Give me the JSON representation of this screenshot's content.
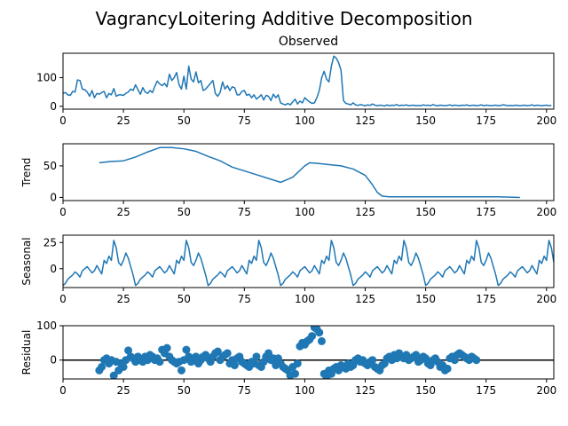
{
  "title": "VagrancyLoitering Additive Decomposition",
  "colors": {
    "series": "#1f77b4",
    "frame": "#000000",
    "zero_line": "#000000"
  },
  "chart_data": [
    {
      "type": "line",
      "name": "observed",
      "title": "Observed",
      "ylabel": "",
      "xlim": [
        0,
        203
      ],
      "ylim": [
        -10,
        185
      ],
      "xticks": [
        0,
        25,
        50,
        75,
        100,
        125,
        150,
        175,
        200
      ],
      "yticks": [
        0,
        100
      ],
      "x_start": 0,
      "values": [
        45,
        48,
        40,
        38,
        52,
        50,
        92,
        90,
        60,
        58,
        50,
        35,
        55,
        30,
        45,
        42,
        48,
        52,
        30,
        45,
        40,
        62,
        35,
        40,
        40,
        38,
        45,
        50,
        60,
        55,
        75,
        58,
        42,
        65,
        50,
        45,
        55,
        48,
        70,
        88,
        78,
        72,
        80,
        68,
        112,
        90,
        100,
        118,
        75,
        60,
        105,
        60,
        140,
        95,
        85,
        120,
        82,
        90,
        55,
        60,
        70,
        80,
        90,
        45,
        35,
        48,
        85,
        60,
        72,
        55,
        68,
        65,
        40,
        40,
        52,
        55,
        38,
        42,
        30,
        40,
        25,
        32,
        40,
        22,
        38,
        35,
        20,
        42,
        30,
        40,
        12,
        8,
        5,
        10,
        5,
        15,
        25,
        8,
        18,
        12,
        30,
        22,
        15,
        10,
        12,
        30,
        55,
        100,
        122,
        95,
        85,
        140,
        175,
        168,
        152,
        125,
        20,
        10,
        8,
        5,
        12,
        5,
        3,
        6,
        4,
        2,
        5,
        3,
        8,
        4,
        2,
        4,
        3,
        1,
        5,
        2,
        4,
        3,
        6,
        2,
        4,
        3,
        5,
        2,
        3,
        4,
        2,
        3,
        2,
        5,
        3,
        4,
        2,
        6,
        3,
        2,
        4,
        3,
        2,
        3,
        5,
        2,
        4,
        3,
        2,
        4,
        3,
        5,
        2,
        3,
        4,
        2,
        3,
        5,
        2,
        4,
        3,
        2,
        3,
        4,
        2,
        3,
        5,
        4,
        2,
        3,
        2,
        4,
        3,
        2,
        3,
        4,
        2,
        3,
        5,
        2,
        4,
        3,
        2,
        3,
        4,
        2,
        3
      ]
    },
    {
      "type": "line",
      "name": "trend",
      "title": "",
      "ylabel": "Trend",
      "xlim": [
        0,
        203
      ],
      "ylim": [
        -5,
        85
      ],
      "xticks": [
        0,
        25,
        50,
        75,
        100,
        125,
        150,
        175,
        200
      ],
      "yticks": [
        0,
        50
      ],
      "x": [
        15,
        20,
        25,
        30,
        35,
        40,
        45,
        50,
        55,
        60,
        65,
        70,
        75,
        80,
        85,
        90,
        95,
        100,
        102,
        105,
        110,
        115,
        120,
        125,
        128,
        130,
        132,
        135,
        140,
        150,
        160,
        170,
        180,
        189
      ],
      "values": [
        55,
        57,
        58,
        64,
        72,
        79,
        79,
        77,
        73,
        65,
        58,
        48,
        42,
        36,
        30,
        24,
        32,
        50,
        55,
        54,
        52,
        50,
        45,
        35,
        20,
        8,
        2,
        1,
        1,
        1,
        1,
        1,
        1,
        0
      ]
    },
    {
      "type": "line",
      "name": "seasonal",
      "title": "",
      "ylabel": "Seasonal",
      "xlim": [
        0,
        203
      ],
      "ylim": [
        -18,
        32
      ],
      "xticks": [
        0,
        25,
        50,
        75,
        100,
        125,
        150,
        175,
        200
      ],
      "yticks": [
        0,
        25
      ],
      "x_start": 0,
      "pattern": [
        -16,
        -14,
        -10,
        -8,
        -6,
        -3,
        -5,
        -8,
        -2,
        0,
        2,
        -1,
        -4,
        -2,
        3,
        -1,
        -5,
        8,
        5,
        12,
        8,
        27,
        20,
        6,
        3,
        8,
        15,
        10,
        2,
        -6
      ],
      "length": 204
    },
    {
      "type": "scatter",
      "name": "residual",
      "title": "",
      "ylabel": "Residual",
      "xlim": [
        0,
        203
      ],
      "ylim": [
        -55,
        100
      ],
      "xticks": [
        0,
        25,
        50,
        75,
        100,
        125,
        150,
        175,
        200
      ],
      "yticks": [
        0,
        100
      ],
      "zero_line": true,
      "x_start": 15,
      "values": [
        -30,
        -20,
        0,
        5,
        -10,
        0,
        -45,
        -5,
        -30,
        -10,
        -20,
        0,
        28,
        10,
        5,
        -5,
        10,
        0,
        -5,
        10,
        0,
        15,
        10,
        0,
        5,
        -5,
        30,
        20,
        35,
        10,
        0,
        -5,
        -10,
        -5,
        -30,
        0,
        30,
        10,
        -5,
        5,
        10,
        -10,
        0,
        10,
        15,
        5,
        -5,
        10,
        20,
        25,
        0,
        10,
        15,
        20,
        -10,
        0,
        -15,
        5,
        10,
        -5,
        -10,
        -15,
        -20,
        -5,
        -10,
        10,
        -15,
        -20,
        -5,
        10,
        20,
        0,
        5,
        -15,
        5,
        -10,
        -20,
        -25,
        -30,
        -45,
        -20,
        -40,
        -10,
        40,
        50,
        45,
        55,
        60,
        70,
        95,
        90,
        80,
        55,
        -40,
        -50,
        -30,
        -40,
        -25,
        -20,
        -30,
        -15,
        -20,
        -25,
        -10,
        -20,
        -15,
        0,
        5,
        -5,
        0,
        -10,
        -15,
        -5,
        0,
        -20,
        -25,
        -30,
        -15,
        -10,
        5,
        10,
        0,
        15,
        5,
        20,
        10,
        5,
        15,
        0,
        5,
        10,
        15,
        -5,
        0,
        10,
        5,
        -10,
        -15,
        0,
        5,
        -5,
        -20,
        -15,
        -30,
        -25,
        5,
        10,
        0,
        15,
        20,
        15,
        10,
        5,
        0,
        10,
        5,
        0
      ]
    }
  ]
}
